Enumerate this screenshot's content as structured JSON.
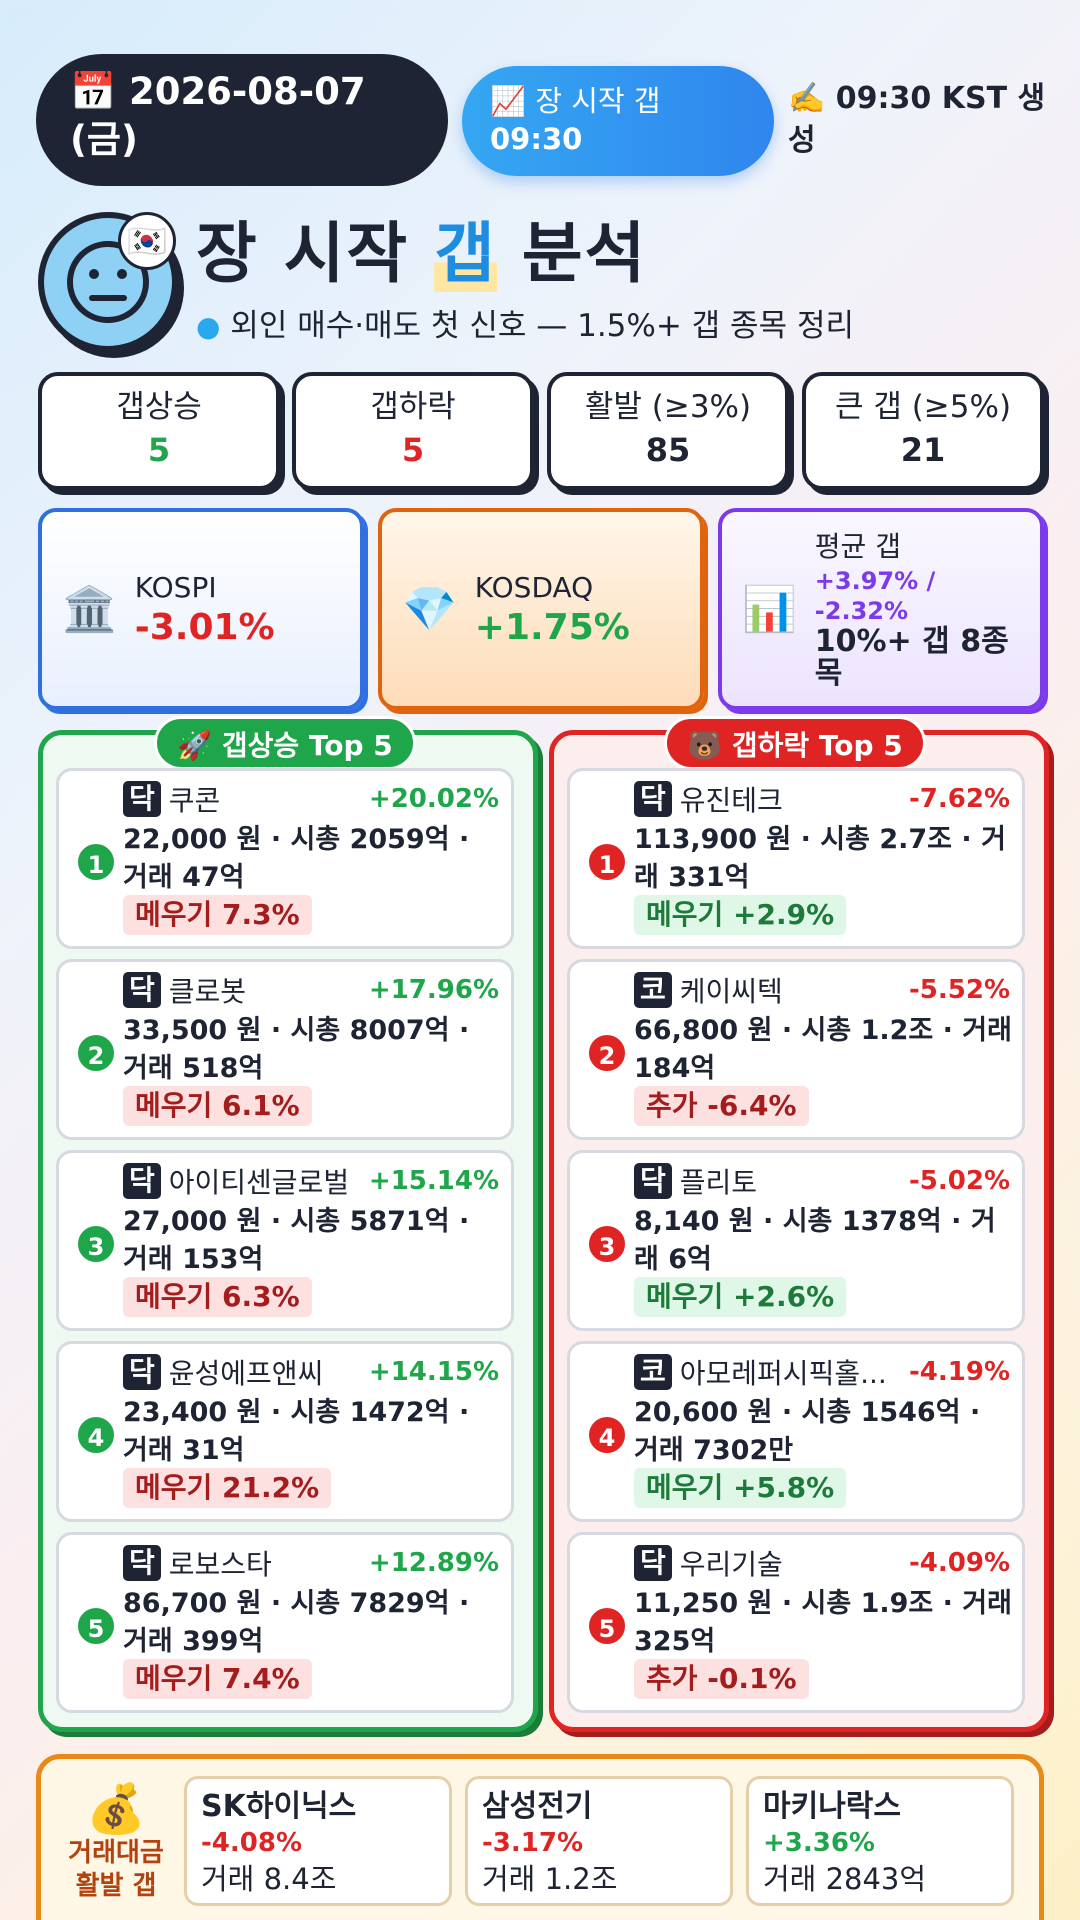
{
  "header": {
    "date": "📅 2026-08-07 (금)",
    "session_label": "📈 장 시작 갭",
    "session_time": "09:30",
    "generated": "✍️ 09:30 KST 생성"
  },
  "title": {
    "part1": "장 시작 ",
    "highlight": "갭",
    "part2": " 분석",
    "subtitle": "외인 매수·매도 첫 신호 — 1.5%+ 갭 종목 정리",
    "avatar_emoji": "😐",
    "flag_emoji": "🇰🇷"
  },
  "stats": [
    {
      "label": "갭상승",
      "value": "5",
      "color": "#1fa64a"
    },
    {
      "label": "갭하락",
      "value": "5",
      "color": "#e02424"
    },
    {
      "label": "활발 (≥3%)",
      "value": "85",
      "color": "#1e2433"
    },
    {
      "label": "큰 갭 (≥5%)",
      "value": "21",
      "color": "#1e2433"
    }
  ],
  "indices": {
    "kospi": {
      "emoji": "🏛️",
      "name": "KOSPI",
      "pct": "-3.01%"
    },
    "kosdaq": {
      "emoji": "💎",
      "name": "KOSDAQ",
      "pct": "+1.75%"
    },
    "avg": {
      "emoji": "📊",
      "name": "평균 갭",
      "pct": "+3.97% / -2.32%",
      "note": "10%+ 갭 8종목"
    }
  },
  "gap_up": {
    "title": "🚀 갭상승 Top 5",
    "items": [
      {
        "rank": "1",
        "market": "닥",
        "name": "쿠콘",
        "pct": "+20.02%",
        "detail": "22,000 원 · 시총 2059억 · 거래 47억",
        "tag": "메우기 7.3%"
      },
      {
        "rank": "2",
        "market": "닥",
        "name": "클로봇",
        "pct": "+17.96%",
        "detail": "33,500 원 · 시총 8007억 · 거래 518억",
        "tag": "메우기 6.1%"
      },
      {
        "rank": "3",
        "market": "닥",
        "name": "아이티센글로벌",
        "pct": "+15.14%",
        "detail": "27,000 원 · 시총 5871억 · 거래 153억",
        "tag": "메우기 6.3%"
      },
      {
        "rank": "4",
        "market": "닥",
        "name": "윤성에프앤씨",
        "pct": "+14.15%",
        "detail": "23,400 원 · 시총 1472억 · 거래 31억",
        "tag": "메우기 21.2%"
      },
      {
        "rank": "5",
        "market": "닥",
        "name": "로보스타",
        "pct": "+12.89%",
        "detail": "86,700 원 · 시총 7829억 · 거래 399억",
        "tag": "메우기 7.4%"
      }
    ]
  },
  "gap_down": {
    "title": "🐻 갭하락 Top 5",
    "items": [
      {
        "rank": "1",
        "market": "닥",
        "name": "유진테크",
        "pct": "-7.62%",
        "detail": "113,900 원 · 시총 2.7조 · 거래 331억",
        "tag": "메우기 +2.9%",
        "tag_type": "green"
      },
      {
        "rank": "2",
        "market": "코",
        "name": "케이씨텍",
        "pct": "-5.52%",
        "detail": "66,800 원 · 시총 1.2조 · 거래 184억",
        "tag": "추가 -6.4%",
        "tag_type": "red"
      },
      {
        "rank": "3",
        "market": "닥",
        "name": "플리토",
        "pct": "-5.02%",
        "detail": "8,140 원 · 시총 1378억 · 거래 6억",
        "tag": "메우기 +2.6%",
        "tag_type": "green"
      },
      {
        "rank": "4",
        "market": "코",
        "name": "아모레퍼시픽홀...",
        "pct": "-4.19%",
        "detail": "20,600 원 · 시총 1546억 · 거래 7302만",
        "tag": "메우기 +5.8%",
        "tag_type": "green"
      },
      {
        "rank": "5",
        "market": "닥",
        "name": "우리기술",
        "pct": "-4.09%",
        "detail": "11,250 원 · 시총 1.9조 · 거래 325억",
        "tag": "추가 -0.1%",
        "tag_type": "red"
      }
    ]
  },
  "volume": {
    "emoji": "💰",
    "label1": "거래대금",
    "label2": "활발 갭",
    "items": [
      {
        "name": "SK하이닉스",
        "pct": "-4.08%",
        "trade": "거래 8.4조",
        "color": "#e02424"
      },
      {
        "name": "삼성전기",
        "pct": "-3.17%",
        "trade": "거래 1.2조",
        "color": "#e02424"
      },
      {
        "name": "마키나락스",
        "pct": "+3.36%",
        "trade": "거래 2843억",
        "color": "#1fa64a"
      }
    ]
  },
  "colors": {
    "up": "#1fa64a",
    "down": "#e02424",
    "dark": "#1e2433",
    "accent": "#2f86ee"
  }
}
